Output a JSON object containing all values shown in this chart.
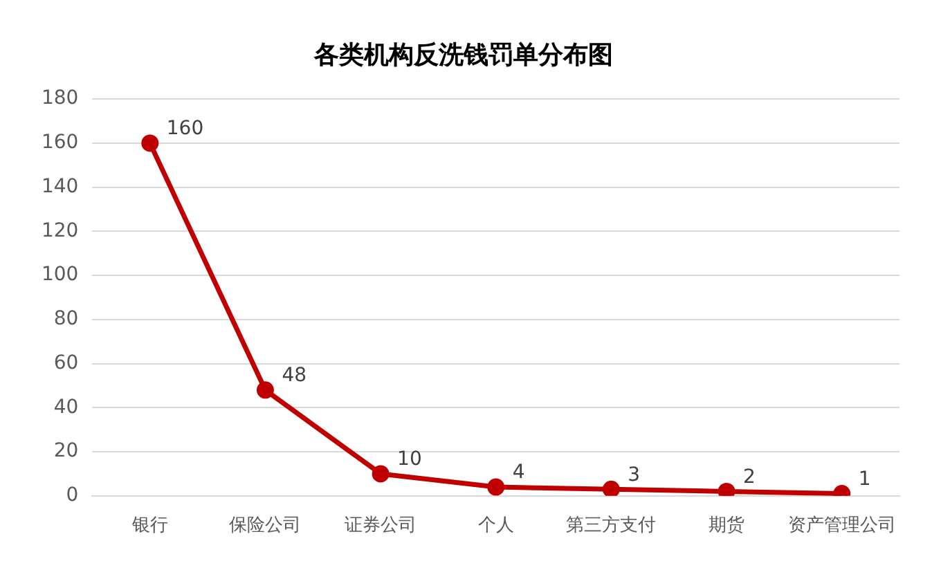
{
  "chart_data": {
    "type": "line",
    "title": "各类机构反洗钱罚单分布图",
    "categories": [
      "银行",
      "保险公司",
      "证券公司",
      "个人",
      "第三方支付",
      "期货",
      "资产管理公司"
    ],
    "series": [
      {
        "color": "#c00000",
        "values": [
          160,
          48,
          10,
          4,
          3,
          2,
          1
        ]
      }
    ],
    "ylim": [
      0,
      180
    ],
    "yticks": [
      0,
      20,
      40,
      60,
      80,
      100,
      120,
      140,
      160,
      180
    ],
    "grid": "y",
    "legend": false,
    "marker": "circle",
    "line_style": "solid",
    "data_labels": true
  }
}
